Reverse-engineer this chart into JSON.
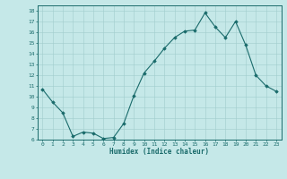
{
  "x": [
    0,
    1,
    2,
    3,
    4,
    5,
    6,
    7,
    8,
    9,
    10,
    11,
    12,
    13,
    14,
    15,
    16,
    17,
    18,
    19,
    20,
    21,
    22,
    23
  ],
  "y": [
    10.7,
    9.5,
    8.5,
    6.3,
    6.7,
    6.6,
    6.1,
    6.2,
    7.5,
    10.1,
    12.2,
    13.3,
    14.5,
    15.5,
    16.1,
    16.2,
    17.8,
    16.5,
    15.5,
    17.0,
    14.8,
    12.0,
    11.0,
    10.5
  ],
  "xlabel": "Humidex (Indice chaleur)",
  "bg_color": "#c5e8e8",
  "line_color": "#1a6b6b",
  "marker_color": "#1a6b6b",
  "grid_color": "#a0cccc",
  "ylim": [
    6,
    18.5
  ],
  "xlim": [
    -0.5,
    23.5
  ],
  "yticks": [
    6,
    7,
    8,
    9,
    10,
    11,
    12,
    13,
    14,
    15,
    16,
    17,
    18
  ],
  "xticks": [
    0,
    1,
    2,
    3,
    4,
    5,
    6,
    7,
    8,
    9,
    10,
    11,
    12,
    13,
    14,
    15,
    16,
    17,
    18,
    19,
    20,
    21,
    22,
    23
  ]
}
